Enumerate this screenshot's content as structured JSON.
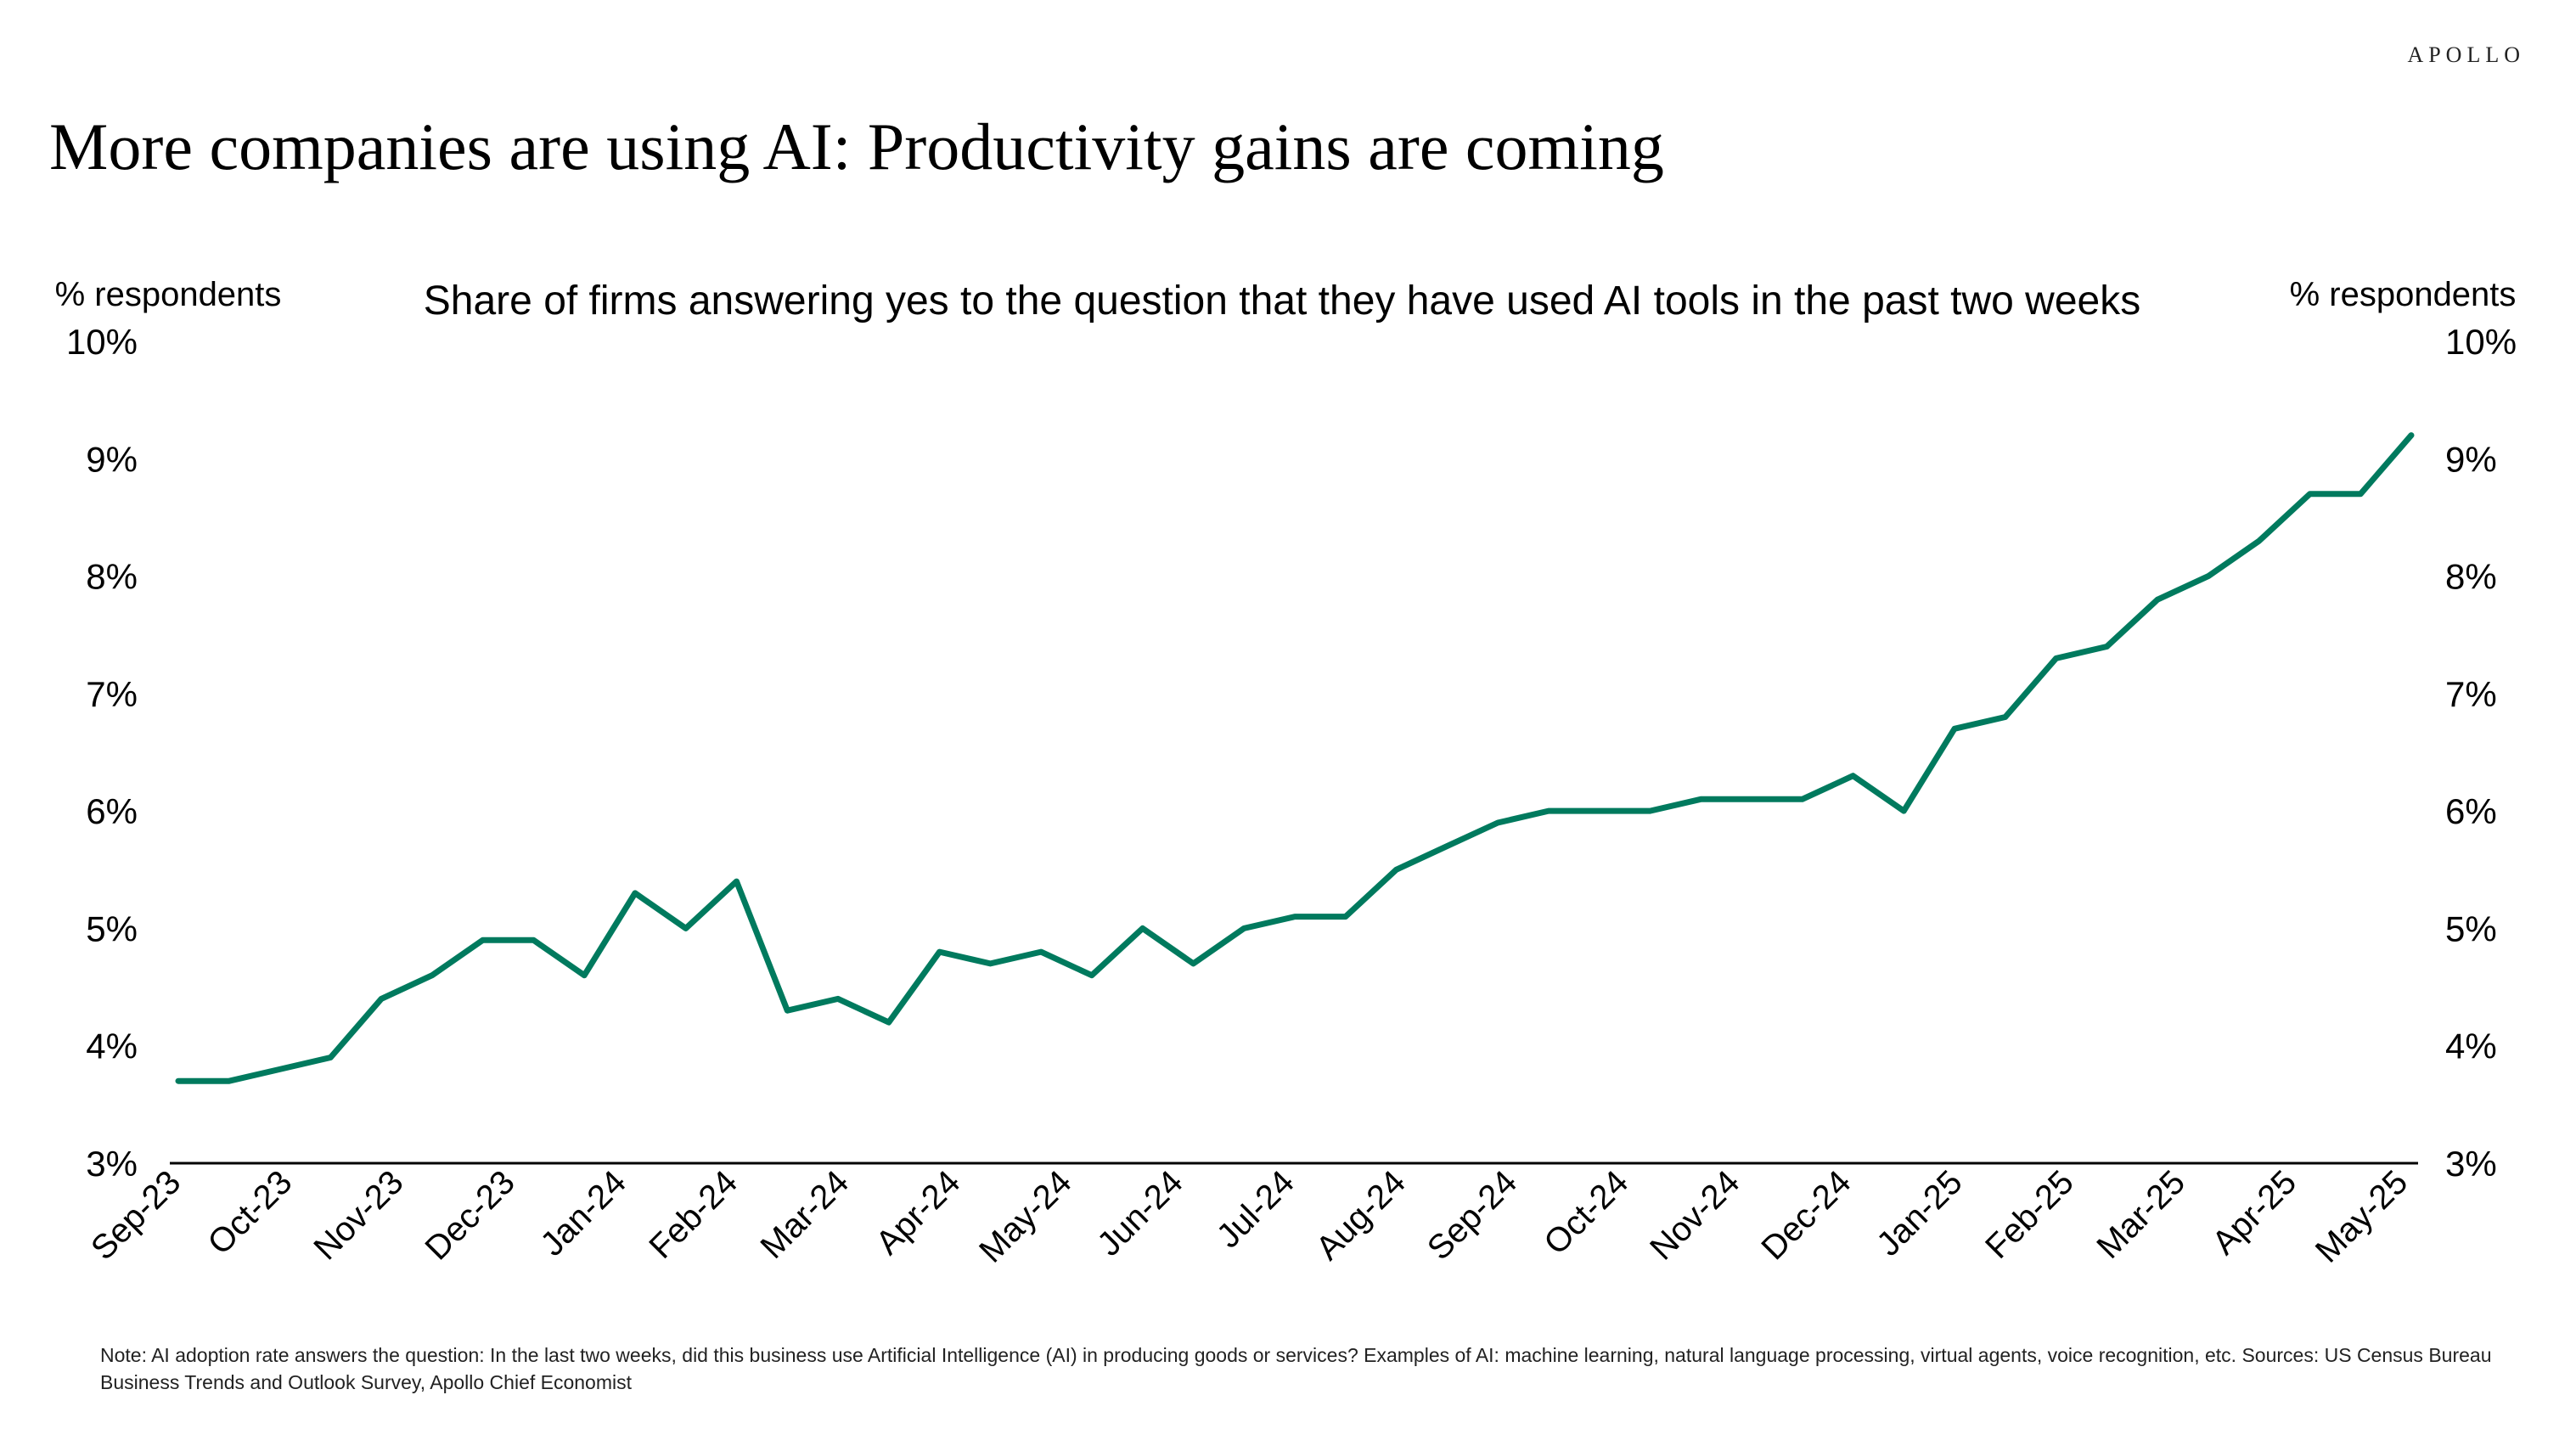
{
  "brand": "APOLLO",
  "title": "More companies are using AI: Productivity gains are coming",
  "note": "Note: AI adoption rate answers the question: In the last two weeks, did this business use Artificial Intelligence (AI) in producing goods or services? Examples of AI: machine learning, natural language processing, virtual agents, voice recognition, etc. Sources: US Census Bureau Business Trends and Outlook Survey, Apollo Chief Economist",
  "chart_data": {
    "type": "line",
    "title": "Share of firms answering yes to the question that they have used AI tools in the past two weeks",
    "ylabel_left": "% respondents",
    "ylabel_right": "% respondents",
    "ylim": [
      3,
      10
    ],
    "yticks": [
      "3%",
      "4%",
      "5%",
      "6%",
      "7%",
      "8%",
      "9%",
      "10%"
    ],
    "ytick_values": [
      3,
      4,
      5,
      6,
      7,
      8,
      9,
      10
    ],
    "x_tick_labels": [
      "Sep-23",
      "Oct-23",
      "Nov-23",
      "Dec-23",
      "Jan-24",
      "Feb-24",
      "Mar-24",
      "Apr-24",
      "May-24",
      "Jun-24",
      "Jul-24",
      "Aug-24",
      "Sep-24",
      "Oct-24",
      "Nov-24",
      "Dec-24",
      "Jan-25",
      "Feb-25",
      "Mar-25",
      "Apr-25",
      "May-25"
    ],
    "series": [
      {
        "name": "AI adoption rate",
        "color": "#007A5E",
        "values": [
          3.7,
          3.7,
          3.8,
          3.9,
          4.4,
          4.6,
          4.9,
          4.9,
          4.6,
          5.3,
          5.0,
          5.4,
          4.3,
          4.4,
          4.2,
          4.8,
          4.7,
          4.8,
          4.6,
          5.0,
          4.7,
          5.0,
          5.1,
          5.1,
          5.5,
          5.7,
          5.9,
          6.0,
          6.0,
          6.0,
          6.1,
          6.1,
          6.1,
          6.3,
          6.0,
          6.7,
          6.8,
          7.3,
          7.4,
          7.8,
          8.0,
          8.3,
          8.7,
          8.7,
          9.2
        ]
      }
    ]
  }
}
